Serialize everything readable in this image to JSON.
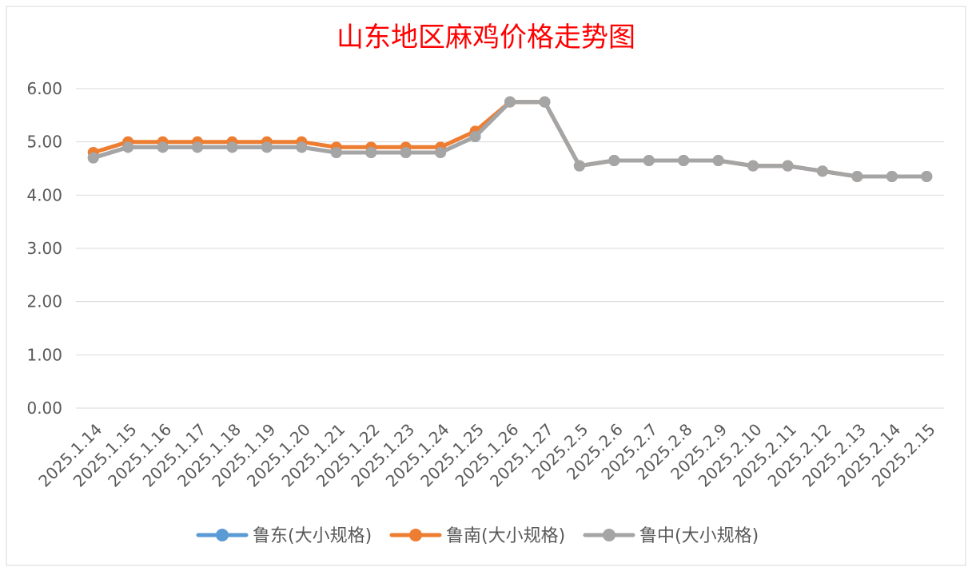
{
  "chart_data": {
    "type": "line",
    "title": "山东地区麻鸡价格走势图",
    "title_color": "#ff0000",
    "x": [
      "2025.1.14",
      "2025.1.15",
      "2025.1.16",
      "2025.1.17",
      "2025.1.18",
      "2025.1.19",
      "2025.1.20",
      "2025.1.21",
      "2025.1.22",
      "2025.1.23",
      "2025.1.24",
      "2025.1.25",
      "2025.1.26",
      "2025.1.27",
      "2025.2.5",
      "2025.2.6",
      "2025.2.7",
      "2025.2.8",
      "2025.2.9",
      "2025.2.10",
      "2025.2.11",
      "2025.2.12",
      "2025.2.13",
      "2025.2.14",
      "2025.2.15"
    ],
    "series": [
      {
        "name": "鲁东(大小规格)",
        "color": "#5b9bd5",
        "values": [
          4.7,
          4.9,
          4.9,
          4.9,
          4.9,
          4.9,
          4.9,
          4.8,
          4.8,
          4.8,
          4.8,
          5.1,
          5.75,
          5.75,
          4.55,
          4.65,
          4.65,
          4.65,
          4.65,
          4.55,
          4.55,
          4.45,
          4.35,
          4.35,
          4.35
        ]
      },
      {
        "name": "鲁南(大小规格)",
        "color": "#ed7d31",
        "values": [
          4.8,
          5.0,
          5.0,
          5.0,
          5.0,
          5.0,
          5.0,
          4.9,
          4.9,
          4.9,
          4.9,
          5.2,
          5.75,
          5.75,
          4.55,
          4.65,
          4.65,
          4.65,
          4.65,
          4.55,
          4.55,
          4.45,
          4.35,
          4.35,
          4.35
        ]
      },
      {
        "name": "鲁中(大小规格)",
        "color": "#a5a5a5",
        "values": [
          4.7,
          4.9,
          4.9,
          4.9,
          4.9,
          4.9,
          4.9,
          4.8,
          4.8,
          4.8,
          4.8,
          5.1,
          5.75,
          5.75,
          4.55,
          4.65,
          4.65,
          4.65,
          4.65,
          4.55,
          4.55,
          4.45,
          4.35,
          4.35,
          4.35
        ]
      }
    ],
    "ylim": [
      0,
      6
    ],
    "yticks": [
      "0.00",
      "1.00",
      "2.00",
      "3.00",
      "4.00",
      "5.00",
      "6.00"
    ],
    "grid": true,
    "legend": "bottom-center",
    "xlabel": "",
    "ylabel": ""
  }
}
